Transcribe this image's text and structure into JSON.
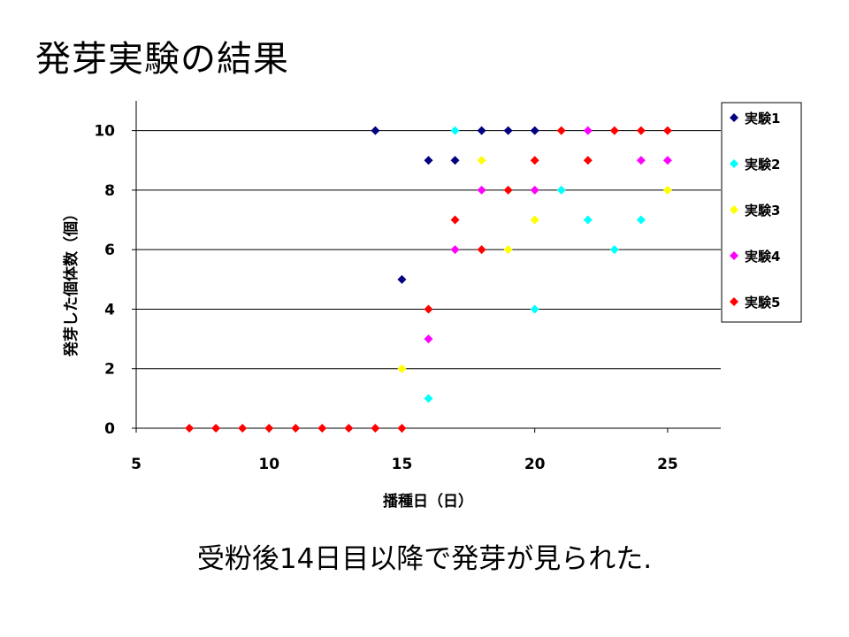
{
  "slide": {
    "title": "発芽実験の結果",
    "caption": "受粉後14日目以降で発芽が見られた."
  },
  "chart_data": {
    "type": "scatter",
    "title": "",
    "xlabel": "播種日（日）",
    "ylabel": "発芽した個体数（個）",
    "xlim": [
      5,
      27
    ],
    "ylim": [
      0,
      11
    ],
    "xticks": [
      5,
      10,
      15,
      20,
      25
    ],
    "yticks": [
      0,
      2,
      4,
      6,
      8,
      10
    ],
    "grid": "horizontal",
    "legend": "right",
    "marker": "diamond",
    "series": [
      {
        "name": "実験1",
        "color": "#000080",
        "points": [
          [
            14,
            10
          ],
          [
            15,
            5
          ],
          [
            16,
            9
          ],
          [
            17,
            9
          ],
          [
            18,
            10
          ],
          [
            19,
            10
          ],
          [
            20,
            10
          ]
        ]
      },
      {
        "name": "実験2",
        "color": "#00FFFF",
        "points": [
          [
            16,
            1
          ],
          [
            17,
            10
          ],
          [
            20,
            4
          ],
          [
            21,
            8
          ],
          [
            22,
            7
          ],
          [
            23,
            6
          ],
          [
            24,
            7
          ]
        ]
      },
      {
        "name": "実験3",
        "color": "#FFFF00",
        "points": [
          [
            15,
            2
          ],
          [
            18,
            9
          ],
          [
            19,
            6
          ],
          [
            20,
            7
          ],
          [
            25,
            8
          ]
        ]
      },
      {
        "name": "実験4",
        "color": "#FF00FF",
        "points": [
          [
            16,
            3
          ],
          [
            17,
            6
          ],
          [
            18,
            8
          ],
          [
            20,
            8
          ],
          [
            22,
            10
          ],
          [
            24,
            9
          ],
          [
            25,
            9
          ]
        ]
      },
      {
        "name": "実験5",
        "color": "#FF0000",
        "points": [
          [
            7,
            0
          ],
          [
            8,
            0
          ],
          [
            9,
            0
          ],
          [
            10,
            0
          ],
          [
            11,
            0
          ],
          [
            12,
            0
          ],
          [
            13,
            0
          ],
          [
            14,
            0
          ],
          [
            15,
            0
          ],
          [
            16,
            4
          ],
          [
            17,
            7
          ],
          [
            18,
            6
          ],
          [
            19,
            8
          ],
          [
            20,
            9
          ],
          [
            21,
            10
          ],
          [
            22,
            9
          ],
          [
            23,
            10
          ],
          [
            24,
            10
          ],
          [
            25,
            10
          ]
        ]
      }
    ]
  }
}
